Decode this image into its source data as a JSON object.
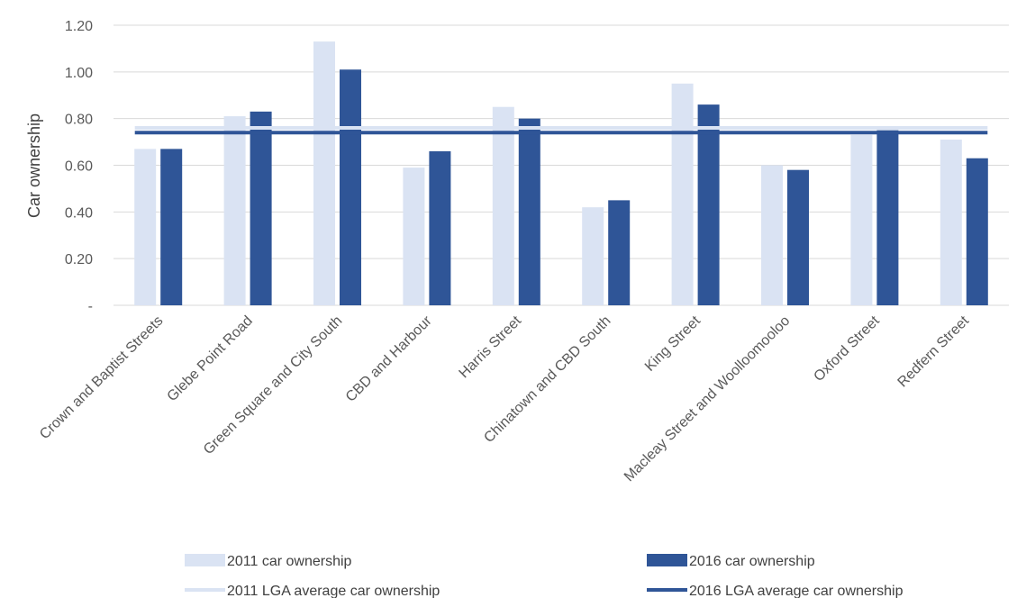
{
  "chart_data": {
    "type": "bar",
    "ylabel": "Car ownership",
    "ylim": [
      0,
      1.2
    ],
    "yticks": [
      {
        "value": 0,
        "label": "-"
      },
      {
        "value": 0.2,
        "label": "0.20"
      },
      {
        "value": 0.4,
        "label": "0.40"
      },
      {
        "value": 0.6,
        "label": "0.60"
      },
      {
        "value": 0.8,
        "label": "0.80"
      },
      {
        "value": 1.0,
        "label": "1.00"
      },
      {
        "value": 1.2,
        "label": "1.20"
      }
    ],
    "categories": [
      "Crown and Baptist Streets",
      "Glebe Point Road",
      "Green Square and City South",
      "CBD and Harbour",
      "Harris Street",
      "Chinatown and CBD South",
      "King Street",
      "Macleay Street and Woolloomooloo",
      "Oxford Street",
      "Redfern Street"
    ],
    "series": [
      {
        "name": "2011 car ownership",
        "kind": "bar",
        "color": "#dae3f3",
        "values": [
          0.67,
          0.81,
          1.13,
          0.59,
          0.85,
          0.42,
          0.95,
          0.6,
          0.73,
          0.71
        ]
      },
      {
        "name": "2016 car ownership",
        "kind": "bar",
        "color": "#2f5597",
        "values": [
          0.67,
          0.83,
          1.01,
          0.66,
          0.8,
          0.45,
          0.86,
          0.58,
          0.75,
          0.63
        ]
      },
      {
        "name": "2011 LGA average car ownership",
        "kind": "line",
        "color": "#dae3f3",
        "value": 0.76
      },
      {
        "name": "2016 LGA average car ownership",
        "kind": "line",
        "color": "#2f5597",
        "value": 0.74
      }
    ],
    "grid": true,
    "legend_position": "bottom"
  }
}
